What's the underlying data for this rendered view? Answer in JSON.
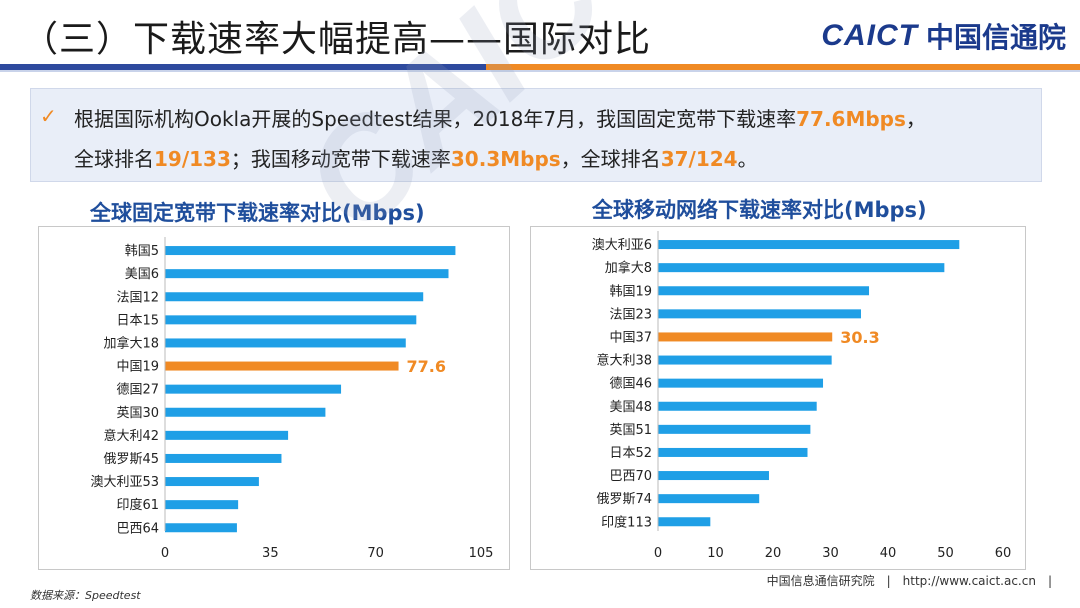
{
  "header": {
    "title": "（三）下载速率大幅提高——国际对比",
    "logo_en": "CAICT",
    "logo_cn": "中国信通院"
  },
  "summary": {
    "check_icon": "✓",
    "line1_a": "根据国际机构Ookla开展的Speedtest结果，2018年7月，我国固定宽带下载速率",
    "line1_b": "77.6Mbps",
    "line1_c": "，",
    "line2_a": "全球排名",
    "line2_b": "19/133",
    "line2_c": "；我国移动宽带下载速率",
    "line2_d": "30.3Mbps",
    "line2_e": "，全球排名",
    "line2_f": "37/124",
    "line2_g": "。"
  },
  "footer": {
    "source": "数据来源：Speedtest",
    "org": "中国信息通信研究院　|　http://www.caict.ac.cn　|"
  },
  "colors": {
    "bar": "#1f9fe6",
    "highlight": "#f08a24",
    "title_blue": "#1f4e9c"
  },
  "chart_data": [
    {
      "type": "bar",
      "orientation": "horizontal",
      "title": "全球固定宽带下载速率对比(Mbps)",
      "categories": [
        "韩国5",
        "美国6",
        "法国12",
        "日本15",
        "加拿大18",
        "中国19",
        "德国27",
        "英国30",
        "意大利42",
        "俄罗斯45",
        "澳大利亚53",
        "印度61",
        "巴西64"
      ],
      "values": [
        96.5,
        94.2,
        85.8,
        83.5,
        80.0,
        77.6,
        58.5,
        53.3,
        40.9,
        38.7,
        31.2,
        24.3,
        23.9
      ],
      "highlight_index": 5,
      "highlight_label": "77.6",
      "xlim": [
        0,
        105
      ],
      "xticks": [
        "0",
        "35",
        "70",
        "105"
      ],
      "grid": false
    },
    {
      "type": "bar",
      "orientation": "horizontal",
      "title": "全球移动网络下载速率对比(Mbps)",
      "categories": [
        "澳大利亚6",
        "加拿大8",
        "韩国19",
        "法国23",
        "中国37",
        "意大利38",
        "德国46",
        "美国48",
        "英国51",
        "日本52",
        "巴西70",
        "俄罗斯74",
        "印度113"
      ],
      "values": [
        52.4,
        49.8,
        36.7,
        35.3,
        30.3,
        30.2,
        28.7,
        27.6,
        26.5,
        26.0,
        19.3,
        17.6,
        9.1
      ],
      "highlight_index": 4,
      "highlight_label": "30.3",
      "xlim": [
        0,
        60
      ],
      "xticks": [
        "0",
        "10",
        "20",
        "30",
        "40",
        "50",
        "60"
      ],
      "grid": false
    }
  ]
}
